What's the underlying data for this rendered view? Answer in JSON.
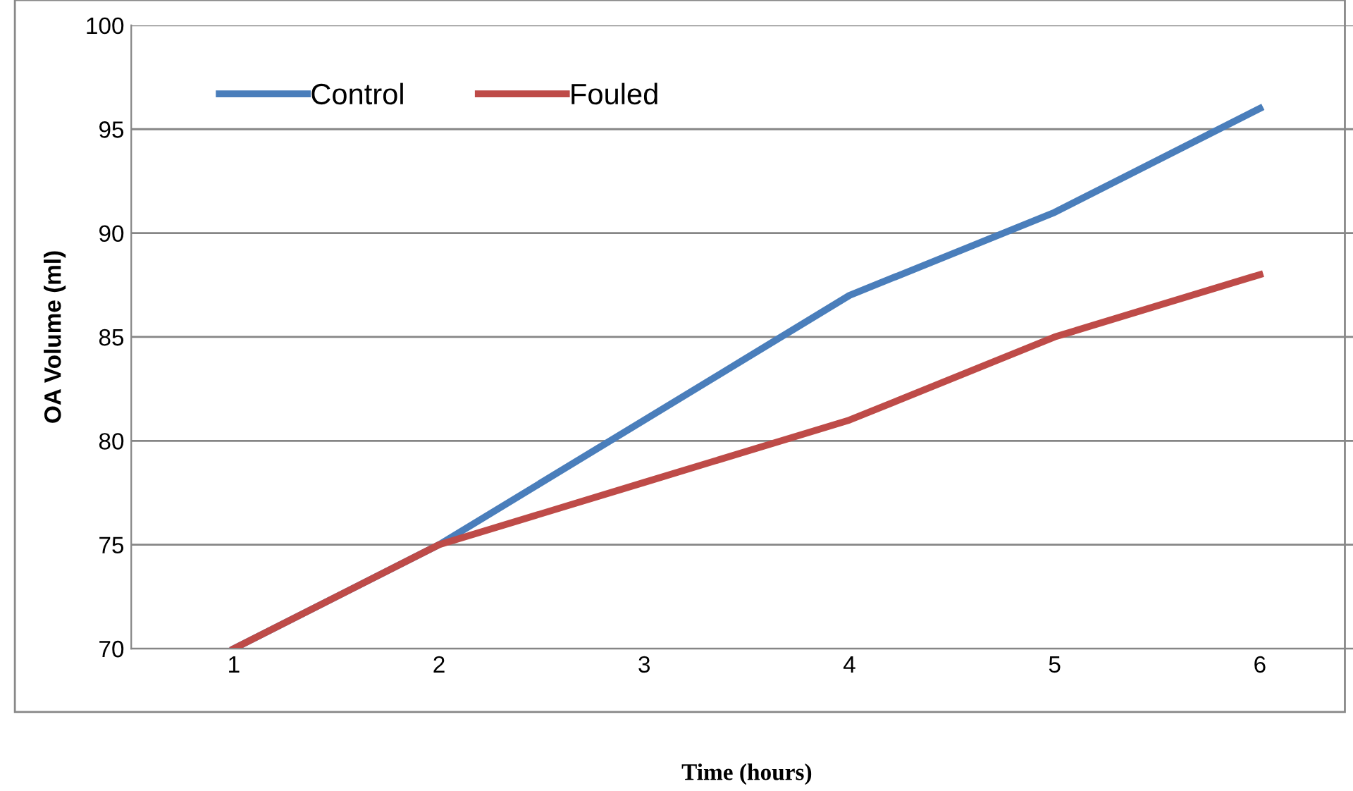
{
  "chart_data": {
    "type": "line",
    "xlabel": "Time (hours)",
    "ylabel": "OA Volume (ml)",
    "categories": [
      "1",
      "2",
      "3",
      "4",
      "5",
      "6"
    ],
    "series": [
      {
        "name": "Control",
        "color": "#4a7ebb",
        "values": [
          70,
          75,
          81,
          87,
          91,
          96
        ]
      },
      {
        "name": "Fouled",
        "color": "#be4b48",
        "values": [
          70,
          75,
          78,
          81,
          85,
          88
        ]
      }
    ],
    "ylim": [
      70,
      100
    ],
    "yticks": [
      70,
      75,
      80,
      85,
      90,
      95,
      100
    ],
    "grid": "y",
    "legend": "top left",
    "marker": "none",
    "line_style": "solid"
  }
}
